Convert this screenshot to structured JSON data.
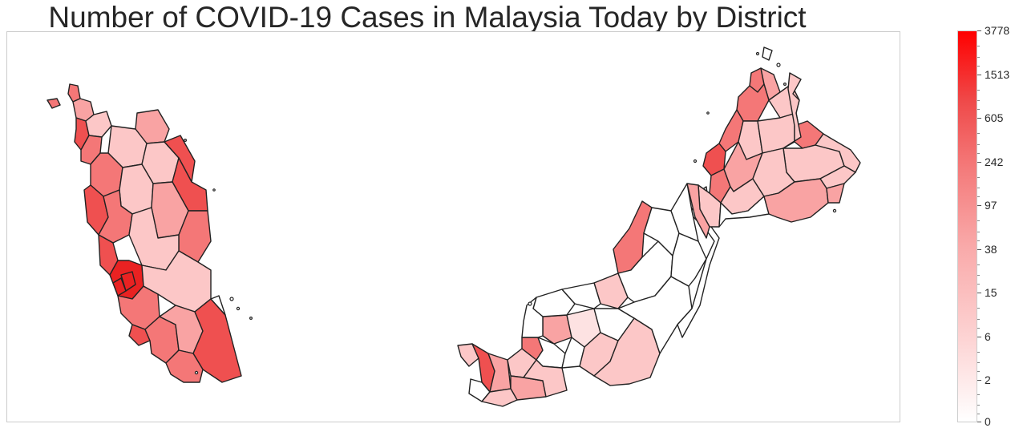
{
  "title": "Number of COVID-19 Cases in Malaysia Today by District",
  "colorbar": {
    "scale": "log",
    "min": 0,
    "max": 3778,
    "tick_labels": [
      "0",
      "2",
      "6",
      "15",
      "38",
      "97",
      "242",
      "605",
      "1513",
      "3778"
    ],
    "color_low": "#ffffff",
    "color_high": "#ff0000"
  },
  "colors": {
    "outline": "#222222",
    "frame": "#cccccc",
    "shades": {
      "none": "#ffffff",
      "very_light": "#fde2e2",
      "light": "#fcc7c7",
      "medium": "#f9a3a3",
      "strong": "#f47777",
      "very_strong": "#ef5050",
      "max": "#e92222"
    }
  },
  "legend_caption": ""
}
